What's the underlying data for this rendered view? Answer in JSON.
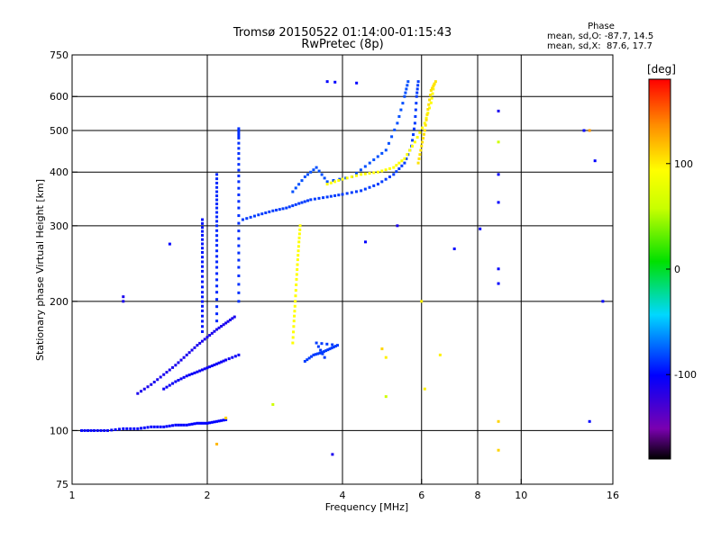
{
  "chart_data": {
    "type": "scatter",
    "title": "Tromsø 20150522 01:14:00-01:15:43",
    "subtitle": "RwPretec (8p)",
    "xlabel": "Frequency [MHz]",
    "ylabel": "Stationary phase Virtual Height [km]",
    "x_scale": "log",
    "y_scale": "log",
    "xlim": [
      1,
      16
    ],
    "ylim": [
      75,
      750
    ],
    "x_ticks": [
      1,
      2,
      4,
      6,
      8,
      10,
      16
    ],
    "x_tick_labels": [
      "1",
      "2",
      "4",
      "6",
      "8",
      "10",
      "16"
    ],
    "y_ticks": [
      75,
      100,
      200,
      300,
      400,
      500,
      600,
      750
    ],
    "y_tick_labels": [
      "75",
      "100",
      "200",
      "300",
      "400",
      "500",
      "600",
      "750"
    ],
    "x_gridlines": [
      2,
      4,
      6,
      8,
      10
    ],
    "y_gridlines": [
      100,
      200,
      300,
      400,
      500,
      600
    ],
    "grid": true,
    "stats": {
      "header": "Phase",
      "line_o": "mean, sd,O: -87.7, 14.5",
      "line_x": "mean, sd,X:  87.6, 17.7"
    },
    "colorbar": {
      "label": "[deg]",
      "range": [
        -180,
        180
      ],
      "ticks": [
        100,
        0,
        -100
      ],
      "tick_labels": [
        "100",
        "0",
        "-100"
      ]
    },
    "traces": [
      {
        "name": "E-layer O-mode",
        "phase": -100,
        "points": [
          [
            1.05,
            100
          ],
          [
            1.12,
            100
          ],
          [
            1.2,
            100
          ],
          [
            1.3,
            101
          ],
          [
            1.4,
            101
          ],
          [
            1.5,
            102
          ],
          [
            1.6,
            102
          ],
          [
            1.7,
            103
          ],
          [
            1.8,
            103
          ],
          [
            1.9,
            104
          ],
          [
            2.0,
            104
          ],
          [
            2.1,
            105
          ],
          [
            2.2,
            106
          ]
        ]
      },
      {
        "name": "F1 lower trace",
        "phase": -110,
        "points": [
          [
            1.4,
            122
          ],
          [
            1.5,
            128
          ],
          [
            1.6,
            135
          ],
          [
            1.7,
            142
          ],
          [
            1.8,
            150
          ],
          [
            1.9,
            158
          ],
          [
            2.0,
            165
          ],
          [
            2.1,
            172
          ],
          [
            2.2,
            178
          ],
          [
            2.3,
            184
          ]
        ]
      },
      {
        "name": "F1 upper trace",
        "phase": -105,
        "points": [
          [
            1.6,
            125
          ],
          [
            1.7,
            130
          ],
          [
            1.8,
            134
          ],
          [
            1.9,
            137
          ],
          [
            2.0,
            140
          ],
          [
            2.1,
            143
          ],
          [
            2.2,
            146
          ],
          [
            2.35,
            150
          ]
        ]
      },
      {
        "name": "F1 cusp column A",
        "phase": -95,
        "points": [
          [
            1.95,
            170
          ],
          [
            1.95,
            190
          ],
          [
            1.95,
            210
          ],
          [
            1.95,
            235
          ],
          [
            1.95,
            260
          ],
          [
            1.95,
            285
          ],
          [
            1.95,
            310
          ]
        ]
      },
      {
        "name": "F1 cusp column B",
        "phase": -90,
        "points": [
          [
            2.1,
            180
          ],
          [
            2.1,
            210
          ],
          [
            2.1,
            240
          ],
          [
            2.1,
            270
          ],
          [
            2.1,
            300
          ],
          [
            2.1,
            330
          ],
          [
            2.1,
            360
          ],
          [
            2.1,
            395
          ]
        ]
      },
      {
        "name": "F1 cusp column C",
        "phase": -88,
        "points": [
          [
            2.35,
            200
          ],
          [
            2.35,
            240
          ],
          [
            2.35,
            280
          ],
          [
            2.35,
            330
          ],
          [
            2.35,
            380
          ],
          [
            2.35,
            430
          ],
          [
            2.35,
            480
          ],
          [
            2.35,
            505
          ]
        ]
      },
      {
        "name": "F2 low-band O-mode",
        "phase": -85,
        "points": [
          [
            2.4,
            310
          ],
          [
            2.6,
            318
          ],
          [
            2.8,
            325
          ],
          [
            3.0,
            330
          ],
          [
            3.2,
            338
          ],
          [
            3.4,
            345
          ],
          [
            3.7,
            350
          ],
          [
            4.0,
            355
          ],
          [
            4.4,
            362
          ],
          [
            4.8,
            375
          ],
          [
            5.2,
            395
          ],
          [
            5.5,
            420
          ],
          [
            5.7,
            460
          ],
          [
            5.8,
            520
          ],
          [
            5.85,
            600
          ],
          [
            5.9,
            650
          ]
        ]
      },
      {
        "name": "F2 O-mode upper trace",
        "phase": -80,
        "points": [
          [
            3.1,
            360
          ],
          [
            3.3,
            390
          ],
          [
            3.5,
            410
          ],
          [
            3.7,
            380
          ],
          [
            4.2,
            390
          ],
          [
            4.6,
            420
          ],
          [
            5.0,
            450
          ],
          [
            5.3,
            520
          ],
          [
            5.5,
            600
          ],
          [
            5.6,
            650
          ]
        ]
      },
      {
        "name": "Blob near 3.5 MHz",
        "phase": -85,
        "points": [
          [
            3.3,
            145
          ],
          [
            3.45,
            150
          ],
          [
            3.6,
            152
          ],
          [
            3.75,
            155
          ],
          [
            3.9,
            158
          ],
          [
            3.5,
            160
          ],
          [
            3.65,
            148
          ]
        ]
      },
      {
        "name": "X-mode trace 3.1 MHz",
        "phase": 95,
        "points": [
          [
            3.1,
            160
          ],
          [
            3.12,
            180
          ],
          [
            3.14,
            200
          ],
          [
            3.16,
            225
          ],
          [
            3.18,
            250
          ],
          [
            3.2,
            275
          ],
          [
            3.22,
            300
          ]
        ]
      },
      {
        "name": "X-mode F2",
        "phase": 95,
        "points": [
          [
            3.7,
            375
          ],
          [
            4.0,
            385
          ],
          [
            4.4,
            395
          ],
          [
            4.8,
            400
          ],
          [
            5.2,
            410
          ],
          [
            5.5,
            430
          ],
          [
            5.8,
            470
          ],
          [
            6.1,
            520
          ],
          [
            6.3,
            580
          ],
          [
            6.4,
            640
          ]
        ]
      },
      {
        "name": "X-mode F2 high",
        "phase": 105,
        "points": [
          [
            5.9,
            420
          ],
          [
            6.0,
            460
          ],
          [
            6.1,
            500
          ],
          [
            6.2,
            560
          ],
          [
            6.3,
            620
          ],
          [
            6.45,
            650
          ]
        ]
      }
    ],
    "scattered_points": [
      {
        "x": 3.7,
        "y": 650,
        "phase": -100
      },
      {
        "x": 3.85,
        "y": 648,
        "phase": -100
      },
      {
        "x": 4.3,
        "y": 645,
        "phase": -100
      },
      {
        "x": 4.9,
        "y": 155,
        "phase": 110
      },
      {
        "x": 5.0,
        "y": 148,
        "phase": 100
      },
      {
        "x": 2.2,
        "y": 107,
        "phase": 110
      },
      {
        "x": 1.65,
        "y": 272,
        "phase": -100
      },
      {
        "x": 1.3,
        "y": 205,
        "phase": -110
      },
      {
        "x": 1.3,
        "y": 200,
        "phase": -110
      },
      {
        "x": 2.1,
        "y": 93,
        "phase": 120
      },
      {
        "x": 2.8,
        "y": 115,
        "phase": 60
      },
      {
        "x": 3.8,
        "y": 88,
        "phase": -110
      },
      {
        "x": 6.6,
        "y": 150,
        "phase": 100
      },
      {
        "x": 7.1,
        "y": 265,
        "phase": -100
      },
      {
        "x": 8.9,
        "y": 555,
        "phase": -110
      },
      {
        "x": 8.9,
        "y": 470,
        "phase": 60
      },
      {
        "x": 8.9,
        "y": 395,
        "phase": -100
      },
      {
        "x": 8.9,
        "y": 340,
        "phase": -100
      },
      {
        "x": 8.9,
        "y": 238,
        "phase": -100
      },
      {
        "x": 8.9,
        "y": 220,
        "phase": -100
      },
      {
        "x": 8.9,
        "y": 105,
        "phase": 110
      },
      {
        "x": 8.9,
        "y": 90,
        "phase": 110
      },
      {
        "x": 13.8,
        "y": 500,
        "phase": -100
      },
      {
        "x": 14.2,
        "y": 500,
        "phase": 130
      },
      {
        "x": 14.6,
        "y": 425,
        "phase": -100
      },
      {
        "x": 14.2,
        "y": 105,
        "phase": -100
      },
      {
        "x": 15.2,
        "y": 200,
        "phase": -100
      },
      {
        "x": 8.1,
        "y": 295,
        "phase": -100
      },
      {
        "x": 6.0,
        "y": 200,
        "phase": 100
      },
      {
        "x": 5.0,
        "y": 120,
        "phase": 60
      },
      {
        "x": 4.5,
        "y": 275,
        "phase": -100
      },
      {
        "x": 6.1,
        "y": 125,
        "phase": 100
      },
      {
        "x": 5.3,
        "y": 300,
        "phase": -110
      }
    ]
  }
}
